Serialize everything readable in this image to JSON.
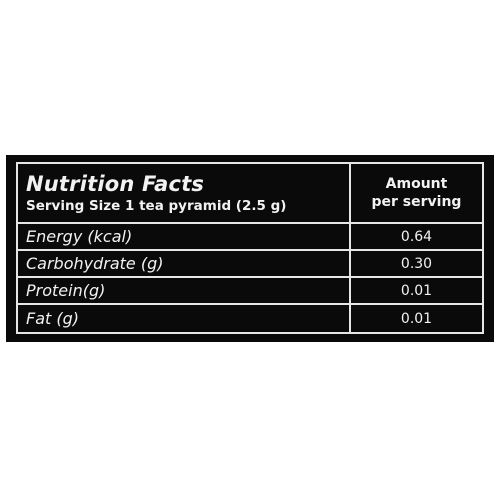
{
  "nutrition": {
    "title": "Nutrition Facts",
    "serving_size": "Serving Size 1 tea pyramid (2.5 g)",
    "amount_header_line1": "Amount",
    "amount_header_line2": "per serving",
    "rows": [
      {
        "label": "Energy (kcal)",
        "value": "0.64"
      },
      {
        "label": "Carbohydrate (g)",
        "value": "0.30"
      },
      {
        "label": "Protein(g)",
        "value": "0.01"
      },
      {
        "label": "Fat (g)",
        "value": "0.01"
      }
    ]
  },
  "colors": {
    "background": "#0a0a0a",
    "text": "#f2f2f2",
    "rules": "#e6e6e6"
  }
}
